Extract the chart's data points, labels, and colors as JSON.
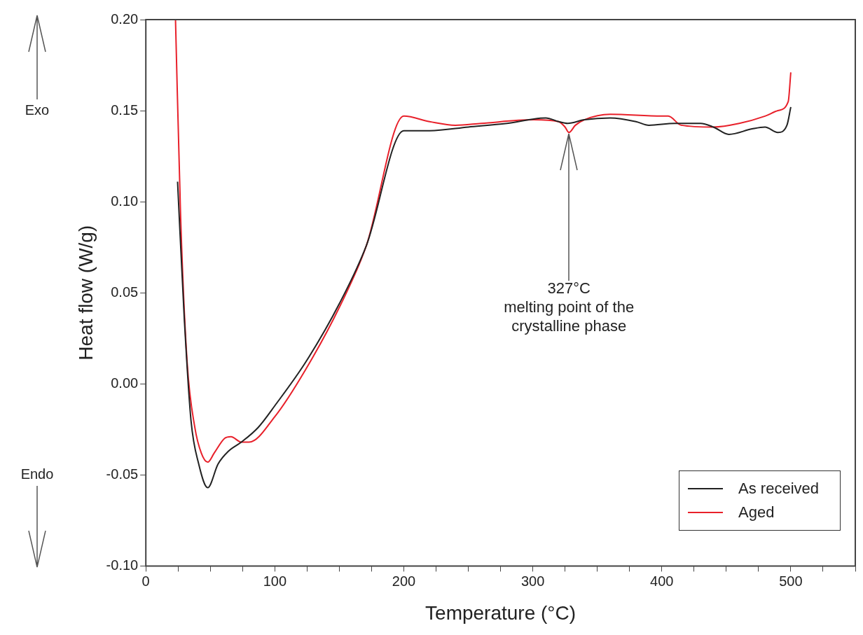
{
  "chart_data": {
    "type": "line",
    "xlabel": "Temperature (°C)",
    "ylabel": "Heat flow (W/g)",
    "xlim": [
      0,
      550
    ],
    "xticks": [
      0,
      {
        "value": 25,
        "label": null
      },
      100,
      {
        "value": 50,
        "label": null
      },
      {
        "value": 75,
        "label": null
      },
      {
        "value": 125,
        "label": null
      },
      {
        "value": 150,
        "label": null
      },
      {
        "value": 175,
        "label": null
      },
      200,
      {
        "value": 225,
        "label": null
      },
      {
        "value": 250,
        "label": null
      },
      {
        "value": 275,
        "label": null
      },
      300,
      {
        "value": 325,
        "label": null
      },
      {
        "value": 350,
        "label": null
      },
      {
        "value": 375,
        "label": null
      },
      400,
      {
        "value": 425,
        "label": null
      },
      {
        "value": 450,
        "label": null
      },
      {
        "value": 475,
        "label": null
      },
      500,
      {
        "value": 525,
        "label": null
      },
      {
        "value": 550,
        "label": null
      }
    ],
    "ylim": [
      -0.1,
      0.2
    ],
    "yticks": [
      {
        "value": -0.1,
        "label": "-0.10"
      },
      {
        "value": -0.05,
        "label": "-0.05"
      },
      {
        "value": 0,
        "label": "0.00"
      },
      {
        "value": 0.05,
        "label": "0.05"
      },
      {
        "value": 0.1,
        "label": "0.10"
      },
      {
        "value": 0.15,
        "label": "0.15"
      },
      {
        "value": 0.2,
        "label": "0.20"
      }
    ],
    "legend": "bottom right",
    "marker": "none",
    "line_style": "solid",
    "series": [
      {
        "name": "As received",
        "color": "#222222",
        "x": [
          24.6,
          29.8,
          35,
          41,
          48,
          56,
          64,
          74,
          87,
          100,
          124,
          150,
          171,
          200,
          220,
          250,
          280,
          310,
          320,
          327,
          340,
          360,
          380,
          390,
          410,
          430,
          440,
          452,
          470,
          480,
          490,
          497,
          500
        ],
        "values": [
          0.111,
          0.036,
          -0.02,
          -0.044,
          -0.057,
          -0.044,
          -0.037,
          -0.032,
          -0.024,
          -0.012,
          0.012,
          0.044,
          0.076,
          0.139,
          0.139,
          0.141,
          0.143,
          0.146,
          0.144,
          0.143,
          0.145,
          0.146,
          0.144,
          0.142,
          0.143,
          0.143,
          0.141,
          0.137,
          0.14,
          0.141,
          0.138,
          0.142,
          0.152
        ]
      },
      {
        "name": "Aged",
        "color": "#e8202a",
        "x": [
          23,
          27,
          32,
          38,
          43,
          48,
          53,
          61,
          66,
          74,
          80,
          100,
          124,
          150,
          171,
          200,
          220,
          240,
          260,
          300,
          320,
          325,
          328,
          333,
          340,
          360,
          400,
          405,
          415,
          440,
          460,
          480,
          490,
          498,
          500
        ],
        "values": [
          0.2,
          0.091,
          0.012,
          -0.024,
          -0.038,
          -0.043,
          -0.038,
          -0.03,
          -0.029,
          -0.032,
          -0.032,
          -0.018,
          0.008,
          0.042,
          0.076,
          0.147,
          0.144,
          0.142,
          0.143,
          0.145,
          0.144,
          0.141,
          0.138,
          0.142,
          0.145,
          0.148,
          0.147,
          0.147,
          0.142,
          0.141,
          0.143,
          0.147,
          0.15,
          0.155,
          0.171
        ]
      }
    ],
    "annotations": [
      "Exo",
      "Endo",
      {
        "text": "327°C\nmelting point of the\ncrystalline phase",
        "x": 328,
        "y": 0.138
      }
    ]
  }
}
